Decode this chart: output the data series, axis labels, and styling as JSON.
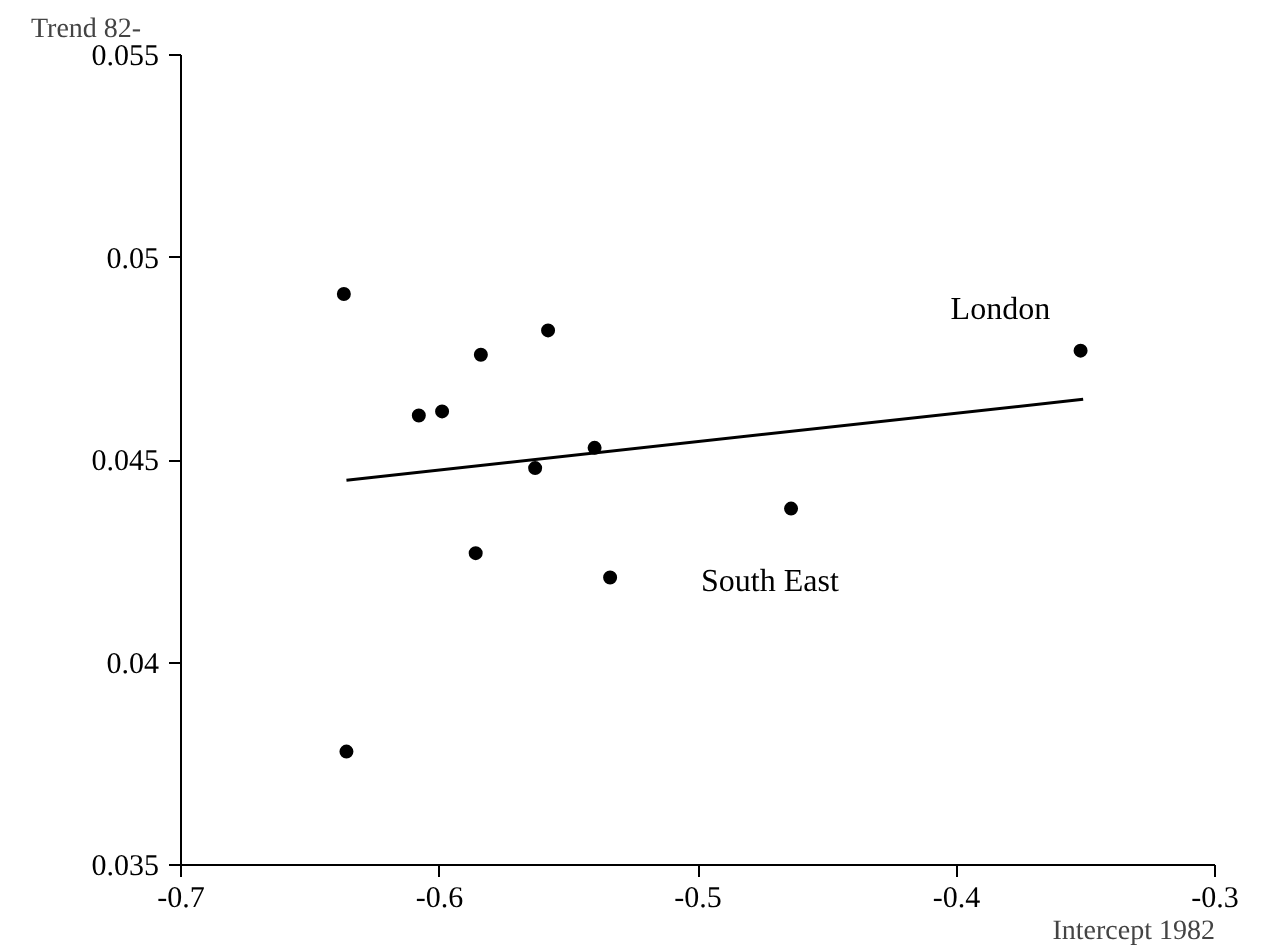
{
  "chart_data": {
    "type": "scatter",
    "xlabel": "Intercept 1982",
    "ylabel": "Trend 82-",
    "xlim": [
      -0.7,
      -0.3
    ],
    "ylim": [
      0.035,
      0.055
    ],
    "xticks": [
      -0.7,
      -0.6,
      -0.5,
      -0.4,
      -0.3
    ],
    "yticks": [
      0.035,
      0.04,
      0.045,
      0.05,
      0.055
    ],
    "grid": false,
    "marker": "circle",
    "series": [
      {
        "color": "#000000",
        "x": [
          -0.637,
          -0.608,
          -0.599,
          -0.584,
          -0.558,
          -0.563,
          -0.54,
          -0.586,
          -0.534,
          -0.636,
          -0.352,
          -0.464
        ],
        "values": [
          0.0491,
          0.0461,
          0.0462,
          0.0476,
          0.0482,
          0.0448,
          0.0453,
          0.0427,
          0.0421,
          0.0378,
          0.0477,
          0.0438
        ]
      },
      {
        "type": "line",
        "marker": "none",
        "color": "#000000",
        "x": [
          -0.636,
          -0.351
        ],
        "values": [
          0.0445,
          0.0465
        ]
      }
    ],
    "annotations": [
      {
        "text": "London",
        "x": -0.352,
        "y": 0.0477
      },
      {
        "text": "South East",
        "x": -0.464,
        "y": 0.0438
      }
    ]
  }
}
